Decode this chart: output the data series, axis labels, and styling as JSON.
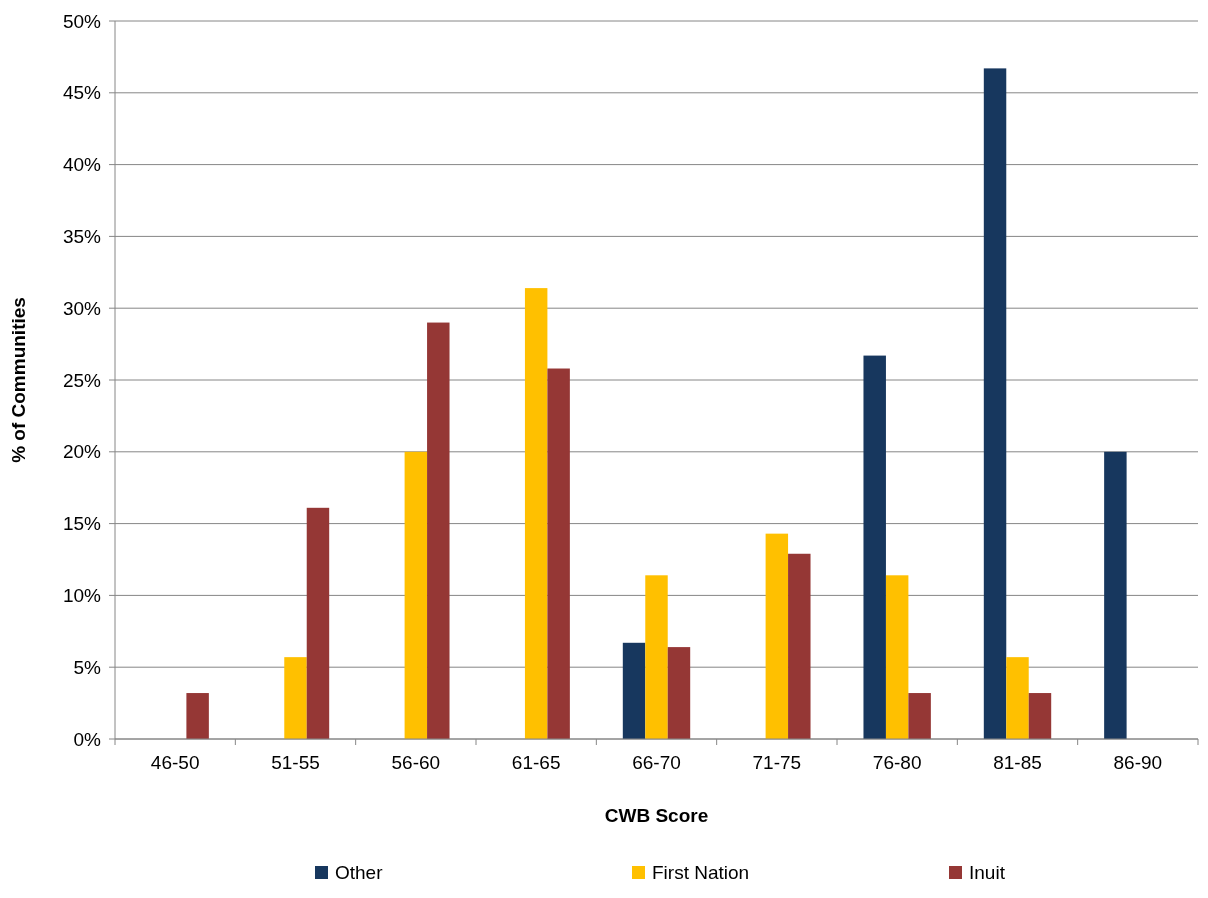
{
  "chart_data": {
    "type": "bar",
    "xlabel": "CWB Score",
    "ylabel": "% of Communities",
    "categories": [
      "46-50",
      "51-55",
      "56-60",
      "61-65",
      "66-70",
      "71-75",
      "76-80",
      "81-85",
      "86-90"
    ],
    "series": [
      {
        "name": "Other",
        "color": "#17375e",
        "values": [
          0,
          0,
          0,
          0,
          6.7,
          0,
          26.7,
          46.7,
          20.0
        ]
      },
      {
        "name": "First Nation",
        "color": "#ffc000",
        "values": [
          0,
          5.7,
          20.0,
          31.4,
          11.4,
          14.3,
          11.4,
          5.7,
          0
        ]
      },
      {
        "name": "Inuit",
        "color": "#953735",
        "values": [
          3.2,
          16.1,
          29.0,
          25.8,
          6.4,
          12.9,
          3.2,
          3.2,
          0
        ]
      }
    ],
    "ylim": [
      0,
      50
    ],
    "yticks": [
      {
        "value": 0,
        "label": "0%"
      },
      {
        "value": 5,
        "label": "5%"
      },
      {
        "value": 10,
        "label": "10%"
      },
      {
        "value": 15,
        "label": "15%"
      },
      {
        "value": 20,
        "label": "20%"
      },
      {
        "value": 25,
        "label": "25%"
      },
      {
        "value": 30,
        "label": "30%"
      },
      {
        "value": 35,
        "label": "35%"
      },
      {
        "value": 40,
        "label": "40%"
      },
      {
        "value": 45,
        "label": "45%"
      },
      {
        "value": 50,
        "label": "50%"
      }
    ],
    "grid": "y",
    "legend": "bottom"
  }
}
